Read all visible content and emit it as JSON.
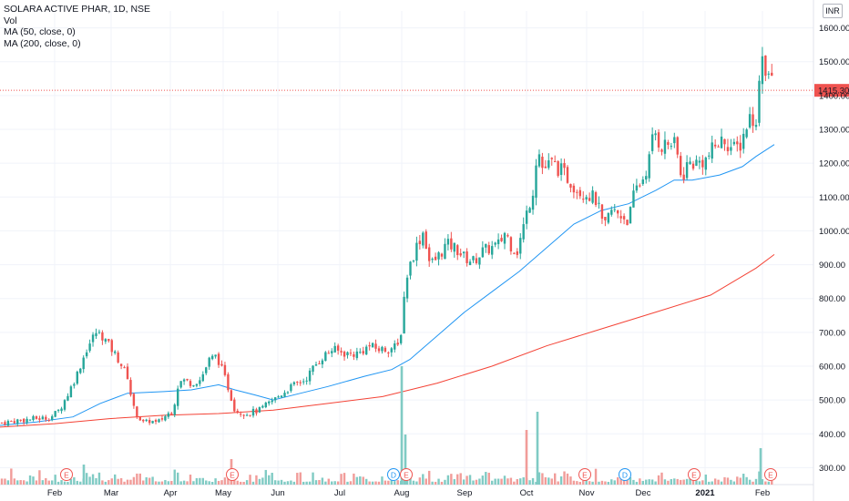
{
  "legend": {
    "title": "SOLARA ACTIVE PHAR, 1D, NSE",
    "vol": "Vol",
    "ma50": "MA (50, close, 0)",
    "ma200": "MA (200, close, 0)"
  },
  "currency": "INR",
  "last_price_label": "1415.30",
  "colors": {
    "up": "#26a69a",
    "down": "#ef5350",
    "ma50": "#2196f3",
    "ma200": "#f44336",
    "vol_up": "#80cbc4",
    "vol_down": "#f19c99",
    "price_line": "#ef5350"
  },
  "chart_data": {
    "type": "candlestick",
    "title": "SOLARA ACTIVE PHAR, 1D, NSE",
    "ylim": [
      250,
      1650
    ],
    "y_ticks": [
      "1600.00",
      "1500.00",
      "1400.00",
      "1300.00",
      "1200.00",
      "1100.00",
      "1000.00",
      "900.00",
      "800.00",
      "700.00",
      "600.00",
      "500.00",
      "400.00",
      "300.00"
    ],
    "x_ticks": [
      {
        "label": "Feb",
        "pos": 60
      },
      {
        "label": "Mar",
        "pos": 122
      },
      {
        "label": "Apr",
        "pos": 187
      },
      {
        "label": "May",
        "pos": 245
      },
      {
        "label": "Jun",
        "pos": 305
      },
      {
        "label": "Jul",
        "pos": 373
      },
      {
        "label": "Aug",
        "pos": 441
      },
      {
        "label": "Sep",
        "pos": 510
      },
      {
        "label": "Oct",
        "pos": 578
      },
      {
        "label": "Nov",
        "pos": 644
      },
      {
        "label": "Dec",
        "pos": 706
      },
      {
        "label": "2021",
        "pos": 774,
        "bold": true
      },
      {
        "label": "Feb",
        "pos": 837
      }
    ],
    "last_price": 1415.3,
    "price_path": [
      [
        0,
        432
      ],
      [
        20,
        440
      ],
      [
        40,
        445
      ],
      [
        55,
        448
      ],
      [
        65,
        470
      ],
      [
        75,
        520
      ],
      [
        85,
        580
      ],
      [
        95,
        650
      ],
      [
        105,
        700
      ],
      [
        112,
        690
      ],
      [
        120,
        660
      ],
      [
        130,
        620
      ],
      [
        140,
        570
      ],
      [
        146,
        480
      ],
      [
        152,
        450
      ],
      [
        158,
        430
      ],
      [
        165,
        440
      ],
      [
        172,
        430
      ],
      [
        180,
        450
      ],
      [
        190,
        470
      ],
      [
        195,
        540
      ],
      [
        200,
        560
      ],
      [
        210,
        550
      ],
      [
        220,
        560
      ],
      [
        230,
        620
      ],
      [
        238,
        630
      ],
      [
        245,
        580
      ],
      [
        250,
        540
      ],
      [
        258,
        470
      ],
      [
        270,
        460
      ],
      [
        285,
        470
      ],
      [
        300,
        500
      ],
      [
        310,
        520
      ],
      [
        320,
        540
      ],
      [
        335,
        560
      ],
      [
        345,
        600
      ],
      [
        355,
        630
      ],
      [
        365,
        650
      ],
      [
        375,
        640
      ],
      [
        385,
        635
      ],
      [
        395,
        640
      ],
      [
        405,
        660
      ],
      [
        415,
        650
      ],
      [
        425,
        650
      ],
      [
        438,
        660
      ],
      [
        441,
        720
      ],
      [
        445,
        850
      ],
      [
        450,
        900
      ],
      [
        458,
        960
      ],
      [
        465,
        1000
      ],
      [
        472,
        900
      ],
      [
        480,
        920
      ],
      [
        490,
        960
      ],
      [
        500,
        950
      ],
      [
        510,
        920
      ],
      [
        520,
        910
      ],
      [
        530,
        940
      ],
      [
        540,
        950
      ],
      [
        548,
        960
      ],
      [
        555,
        1000
      ],
      [
        560,
        960
      ],
      [
        568,
        940
      ],
      [
        578,
        1050
      ],
      [
        585,
        1120
      ],
      [
        590,
        1250
      ],
      [
        596,
        1180
      ],
      [
        605,
        1200
      ],
      [
        615,
        1180
      ],
      [
        625,
        1150
      ],
      [
        635,
        1120
      ],
      [
        645,
        1110
      ],
      [
        655,
        1090
      ],
      [
        663,
        1000
      ],
      [
        670,
        1060
      ],
      [
        680,
        1050
      ],
      [
        690,
        1030
      ],
      [
        697,
        1120
      ],
      [
        705,
        1150
      ],
      [
        712,
        1200
      ],
      [
        718,
        1300
      ],
      [
        725,
        1250
      ],
      [
        735,
        1260
      ],
      [
        742,
        1250
      ],
      [
        748,
        1150
      ],
      [
        755,
        1200
      ],
      [
        765,
        1200
      ],
      [
        775,
        1210
      ],
      [
        785,
        1250
      ],
      [
        795,
        1270
      ],
      [
        805,
        1240
      ],
      [
        812,
        1250
      ],
      [
        818,
        1300
      ],
      [
        825,
        1350
      ],
      [
        830,
        1300
      ],
      [
        835,
        1540
      ],
      [
        840,
        1480
      ],
      [
        845,
        1460
      ],
      [
        850,
        1415
      ]
    ],
    "ma50_path": [
      [
        0,
        425
      ],
      [
        40,
        435
      ],
      [
        80,
        450
      ],
      [
        110,
        490
      ],
      [
        140,
        520
      ],
      [
        180,
        525
      ],
      [
        210,
        530
      ],
      [
        240,
        545
      ],
      [
        258,
        530
      ],
      [
        280,
        515
      ],
      [
        300,
        500
      ],
      [
        330,
        520
      ],
      [
        360,
        540
      ],
      [
        400,
        570
      ],
      [
        430,
        590
      ],
      [
        450,
        620
      ],
      [
        480,
        690
      ],
      [
        510,
        760
      ],
      [
        540,
        820
      ],
      [
        570,
        880
      ],
      [
        600,
        950
      ],
      [
        630,
        1020
      ],
      [
        660,
        1060
      ],
      [
        690,
        1080
      ],
      [
        720,
        1120
      ],
      [
        740,
        1150
      ],
      [
        760,
        1150
      ],
      [
        790,
        1165
      ],
      [
        815,
        1190
      ],
      [
        830,
        1220
      ],
      [
        850,
        1255
      ]
    ],
    "ma200_path": [
      [
        0,
        420
      ],
      [
        60,
        430
      ],
      [
        120,
        445
      ],
      [
        180,
        455
      ],
      [
        240,
        460
      ],
      [
        300,
        470
      ],
      [
        360,
        490
      ],
      [
        420,
        510
      ],
      [
        480,
        550
      ],
      [
        540,
        600
      ],
      [
        600,
        660
      ],
      [
        660,
        710
      ],
      [
        720,
        760
      ],
      [
        780,
        810
      ],
      [
        830,
        890
      ],
      [
        850,
        930
      ]
    ],
    "volume_spikes": [
      {
        "pos": 92,
        "h": 22,
        "dir": "up"
      },
      {
        "pos": 254,
        "h": 28,
        "dir": "down"
      },
      {
        "pos": 441,
        "h": 130,
        "dir": "up"
      },
      {
        "pos": 445,
        "h": 55,
        "dir": "up"
      },
      {
        "pos": 578,
        "h": 60,
        "dir": "down"
      },
      {
        "pos": 590,
        "h": 80,
        "dir": "up"
      },
      {
        "pos": 835,
        "h": 40,
        "dir": "up"
      }
    ],
    "events": [
      {
        "label": "E",
        "pos": 73,
        "kind": "earnings"
      },
      {
        "label": "E",
        "pos": 255,
        "kind": "earnings"
      },
      {
        "label": "D",
        "pos": 432,
        "kind": "dividend"
      },
      {
        "label": "E",
        "pos": 446,
        "kind": "earnings"
      },
      {
        "label": "E",
        "pos": 642,
        "kind": "earnings"
      },
      {
        "label": "D",
        "pos": 686,
        "kind": "dividend"
      },
      {
        "label": "E",
        "pos": 762,
        "kind": "earnings"
      },
      {
        "label": "E",
        "pos": 846,
        "kind": "earnings"
      }
    ]
  }
}
